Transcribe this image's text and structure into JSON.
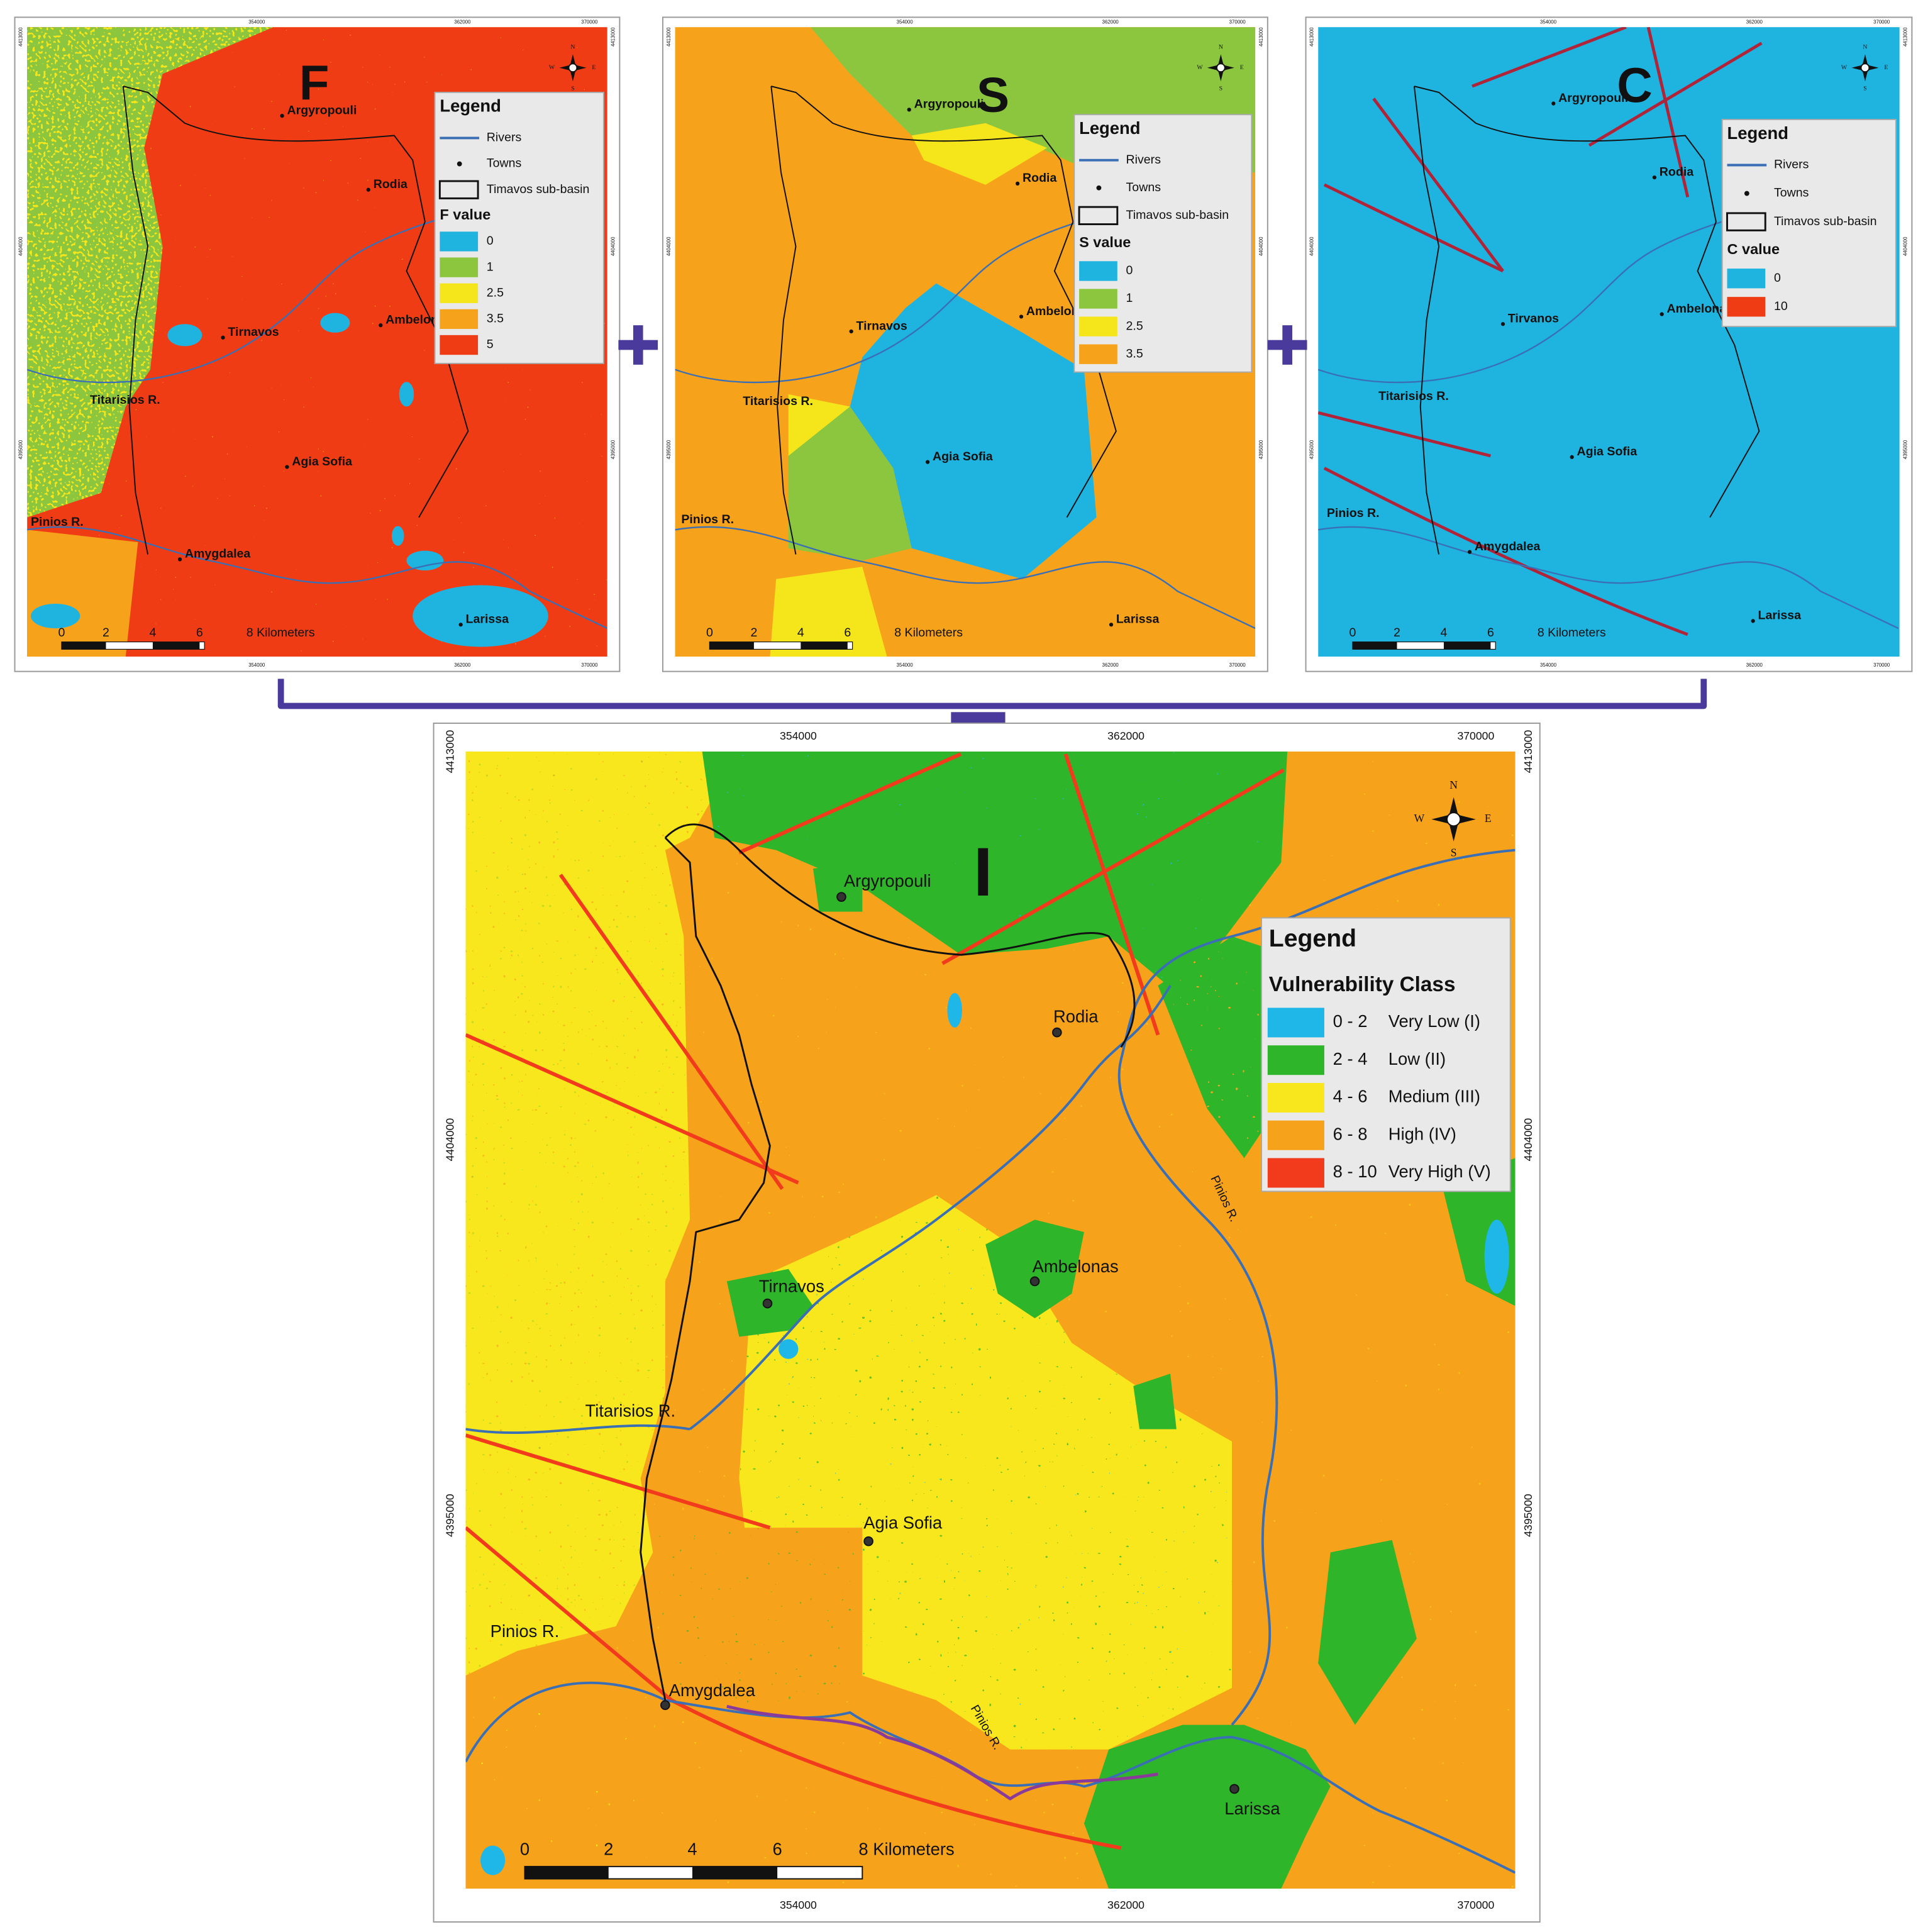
{
  "panels": [
    {
      "letter": "F",
      "legend": {
        "title": "Legend",
        "items": [
          "Rivers",
          "Towns",
          "Timavos sub-basin"
        ],
        "value_title": "F value",
        "classes": [
          {
            "label": "0",
            "color": "#1fb4e0"
          },
          {
            "label": "1",
            "color": "#8cc63f"
          },
          {
            "label": "2.5",
            "color": "#f5e61b"
          },
          {
            "label": "3.5",
            "color": "#f7a21b"
          },
          {
            "label": "5",
            "color": "#f03c14"
          }
        ]
      },
      "towns": [
        "Argyropouli",
        "Rodia",
        "Tirnavos",
        "Ambelonas",
        "Agia Sofia",
        "Amygdalea",
        "Larissa"
      ],
      "rivers": [
        "Titarisios R.",
        "Pinios R."
      ],
      "scale": [
        "0",
        "2",
        "4",
        "6",
        "8 Kilometers"
      ]
    },
    {
      "letter": "S",
      "legend": {
        "title": "Legend",
        "items": [
          "Rivers",
          "Towns",
          "Timavos sub-basin"
        ],
        "value_title": "S value",
        "classes": [
          {
            "label": "0",
            "color": "#1fb4e0"
          },
          {
            "label": "1",
            "color": "#8cc63f"
          },
          {
            "label": "2.5",
            "color": "#f5e61b"
          },
          {
            "label": "3.5",
            "color": "#f7a21b"
          }
        ]
      },
      "towns": [
        "Argyropouli",
        "Rodia",
        "Tirnavos",
        "Ambelonas",
        "Agia Sofia",
        "Larissa"
      ],
      "rivers": [
        "Titarisios R.",
        "Pinios R."
      ],
      "scale": [
        "0",
        "2",
        "4",
        "6",
        "8 Kilometers"
      ]
    },
    {
      "letter": "C",
      "legend": {
        "title": "Legend",
        "items": [
          "Rivers",
          "Towns",
          "Timavos sub-basin"
        ],
        "value_title": "C value",
        "classes": [
          {
            "label": "0",
            "color": "#1fb4e0"
          },
          {
            "label": "10",
            "color": "#f03c14"
          }
        ]
      },
      "towns": [
        "Argyropouli",
        "Rodia",
        "Tirvanos",
        "Ambelonas",
        "Agia Sofia",
        "Amygdalea",
        "Larissa"
      ],
      "rivers": [
        "Titarisios R.",
        "Pinios R."
      ],
      "scale": [
        "0",
        "2",
        "4",
        "6",
        "8 Kilometers"
      ]
    }
  ],
  "main": {
    "letter": "I",
    "legend": {
      "title": "Legend",
      "subtitle": "Vulnerability Class",
      "classes": [
        {
          "range": "0 - 2",
          "label": "Very Low (I)",
          "color": "#1fb7e8"
        },
        {
          "range": "2 - 4",
          "label": "Low (II)",
          "color": "#2fb52a"
        },
        {
          "range": "4 - 6",
          "label": "Medium (III)",
          "color": "#f8e71c"
        },
        {
          "range": "6 - 8",
          "label": "High (IV)",
          "color": "#f7a21b"
        },
        {
          "range": "8 - 10",
          "label": "Very High (V)",
          "color": "#f23a1c"
        }
      ]
    },
    "towns": [
      "Argyropouli",
      "Rodia",
      "Ambelonas",
      "Tirnavos",
      "Agia Sofia",
      "Amygdalea",
      "Larissa"
    ],
    "rivers": [
      "Titarisios R.",
      "Pinios R.",
      "Pinios R.",
      "Pinios R."
    ],
    "scale": [
      "0",
      "2",
      "4",
      "6",
      "8 Kilometers"
    ]
  },
  "x_ticks": [
    "354000",
    "362000",
    "370000"
  ],
  "y_ticks": [
    "4413000",
    "4404000",
    "4395000"
  ],
  "compass": [
    "N",
    "E",
    "S",
    "W"
  ]
}
